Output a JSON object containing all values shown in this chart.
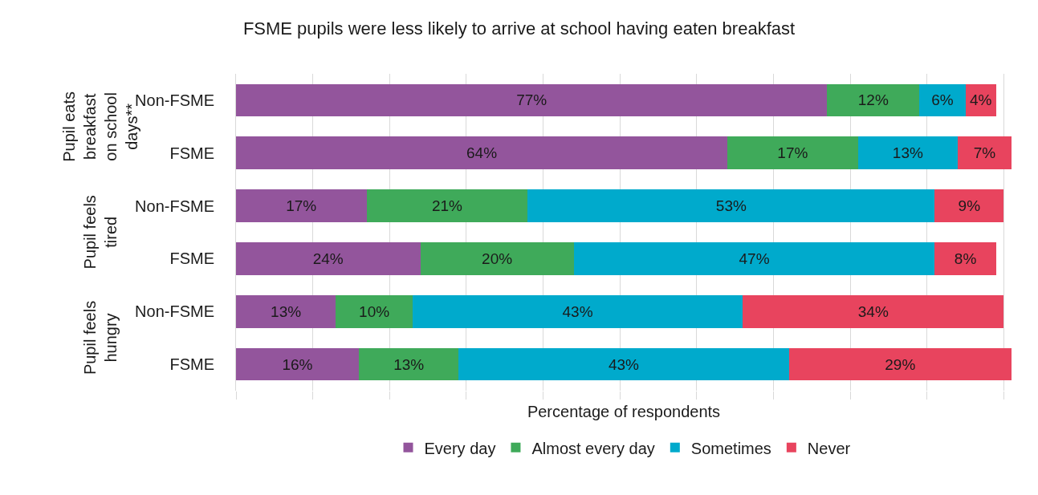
{
  "chart_data": {
    "type": "bar",
    "orientation": "horizontal",
    "stacked": true,
    "title": "FSME pupils were less likely to arrive at school having eaten breakfast",
    "xlabel": "Percentage of respondents",
    "categories": [
      "Non-FSME",
      "FSME",
      "Non-FSME",
      "FSME",
      "Non-FSME",
      "FSME"
    ],
    "annotations": [
      "Pupil eats breakfast on school days**",
      "Pupil feels tired",
      "Pupil feels hungry"
    ],
    "series": [
      {
        "name": "Every day",
        "color": "#93559c",
        "values": [
          77,
          64,
          17,
          24,
          13,
          16
        ],
        "value_labels": [
          "77%",
          "64%",
          "17%",
          "24%",
          "13%",
          "16%"
        ]
      },
      {
        "name": "Almost every day",
        "color": "#3faa5a",
        "values": [
          12,
          17,
          21,
          20,
          10,
          13
        ],
        "value_labels": [
          "12%",
          "17%",
          "21%",
          "20%",
          "10%",
          "13%"
        ]
      },
      {
        "name": "Sometimes",
        "color": "#00aacc",
        "values": [
          6,
          13,
          53,
          47,
          43,
          43
        ],
        "value_labels": [
          "6%",
          "13%",
          "53%",
          "47%",
          "43%",
          "43%"
        ]
      },
      {
        "name": "Never",
        "color": "#e8445e",
        "values": [
          4,
          7,
          9,
          8,
          34,
          29
        ],
        "value_labels": [
          "4%",
          "7%",
          "9%",
          "8%",
          "34%",
          "29%"
        ]
      }
    ],
    "xlim": [
      0,
      101
    ],
    "xticks": [
      {
        "value": 0,
        "label": null
      },
      {
        "value": 10,
        "label": null
      },
      {
        "value": 20,
        "label": null
      },
      {
        "value": 30,
        "label": null
      },
      {
        "value": 40,
        "label": null
      },
      {
        "value": 50,
        "label": null
      },
      {
        "value": 60,
        "label": null
      },
      {
        "value": 70,
        "label": null
      },
      {
        "value": 80,
        "label": null
      },
      {
        "value": 90,
        "label": null
      },
      {
        "value": 100,
        "label": null
      }
    ],
    "grid": "x",
    "legend": "bottom",
    "tick_labels": "y"
  }
}
